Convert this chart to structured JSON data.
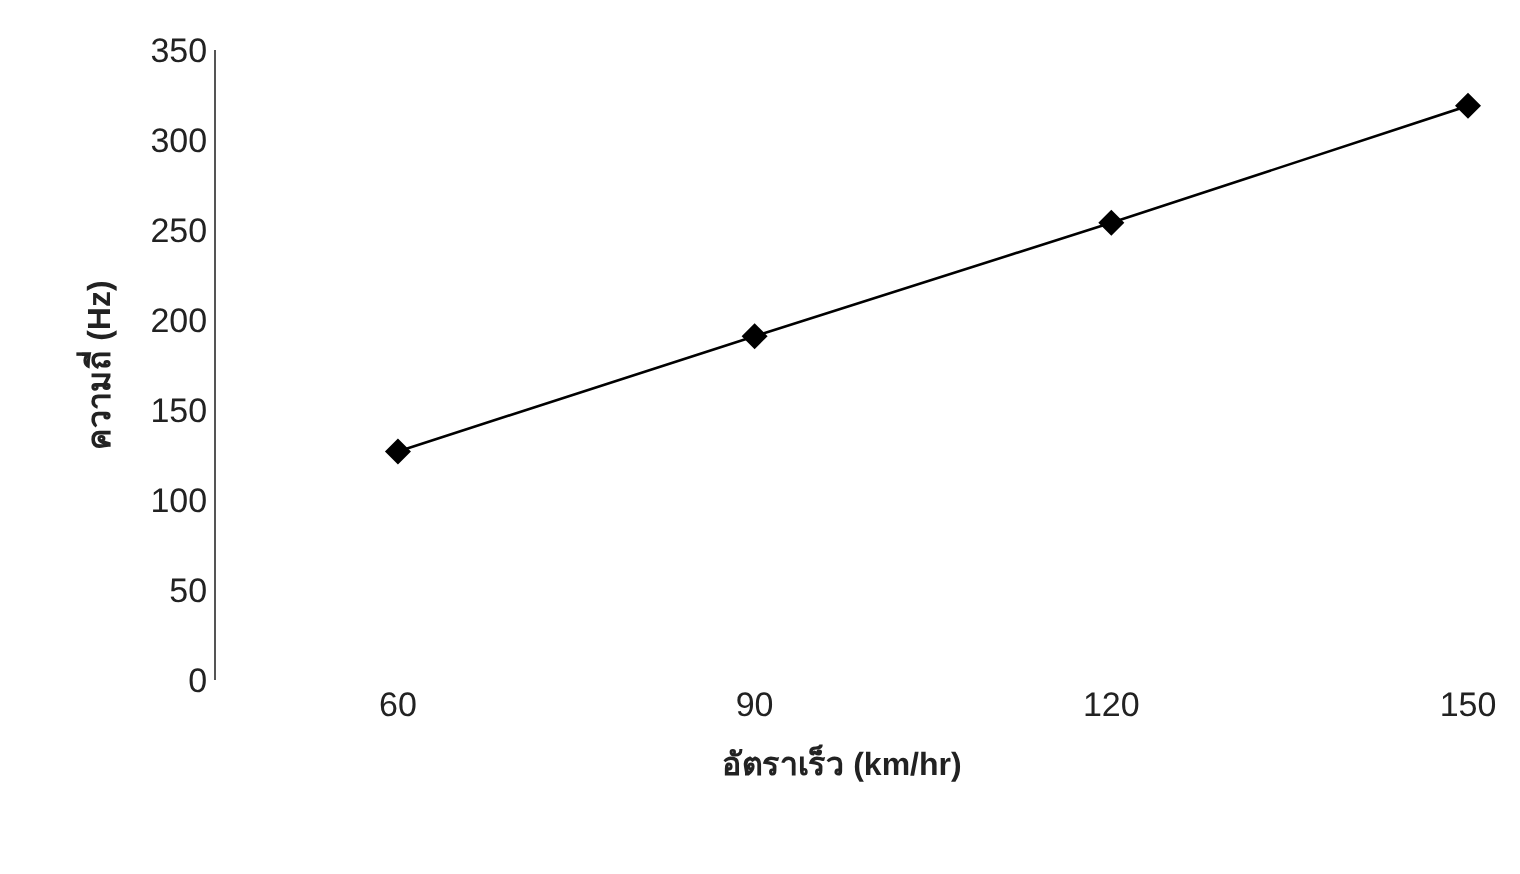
{
  "chart_data": {
    "type": "line",
    "xlabel": "อัตราเร็ว (km/hr)",
    "ylabel": "ความถี่ (Hz)",
    "categories": [
      "60",
      "90",
      "120",
      "150"
    ],
    "series": [
      {
        "color": "#000000",
        "values": [
          127,
          191,
          254,
          319
        ]
      }
    ],
    "ylim": [
      0,
      350
    ],
    "yticks": [
      0,
      50,
      100,
      150,
      200,
      250,
      300,
      350
    ],
    "marker": "diamond",
    "line_style": "solid"
  }
}
